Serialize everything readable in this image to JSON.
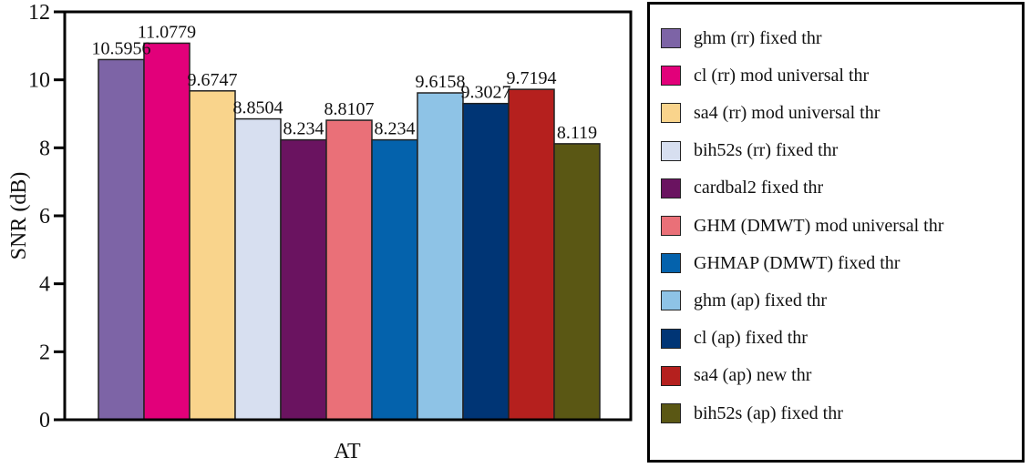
{
  "chart_data": {
    "type": "bar",
    "title": "",
    "xlabel": "AT",
    "ylabel": "SNR (dB)",
    "ylim": [
      0,
      12
    ],
    "yticks": [
      0,
      2,
      4,
      6,
      8,
      10,
      12
    ],
    "categories": [
      "AT"
    ],
    "legend_position": "right",
    "series": [
      {
        "name": "ghm (rr) fixed thr",
        "values": [
          10.5956
        ],
        "label": "10.5956",
        "color": "#7d64a6"
      },
      {
        "name": "cl (rr) mod universal thr",
        "values": [
          11.0779
        ],
        "label": "11.0779",
        "color": "#e2007a"
      },
      {
        "name": "sa4 (rr) mod universal thr",
        "values": [
          9.6747
        ],
        "label": "9.6747",
        "color": "#f9d48c"
      },
      {
        "name": "bih52s (rr) fixed thr",
        "values": [
          8.8504
        ],
        "label": "8.8504",
        "color": "#d7dff0"
      },
      {
        "name": "cardbal2 fixed thr",
        "values": [
          8.234
        ],
        "label": "8.234",
        "color": "#6a1360"
      },
      {
        "name": "GHM (DMWT) mod universal thr",
        "values": [
          8.8107
        ],
        "label": "8.8107",
        "color": "#ea7078"
      },
      {
        "name": "GHMAP (DMWT) fixed thr",
        "values": [
          8.234
        ],
        "label": "8.234",
        "color": "#0462ac"
      },
      {
        "name": "ghm (ap) fixed thr",
        "values": [
          9.6158
        ],
        "label": "9.6158",
        "color": "#8ec3e6"
      },
      {
        "name": "cl (ap) fixed thr",
        "values": [
          9.3027
        ],
        "label": "9.3027",
        "color": "#003575"
      },
      {
        "name": "sa4 (ap) new thr",
        "values": [
          9.7194
        ],
        "label": "9.7194",
        "color": "#b5201e"
      },
      {
        "name": "bih52s (ap) fixed thr",
        "values": [
          8.119
        ],
        "label": "8.119",
        "color": "#5a5714"
      }
    ]
  }
}
